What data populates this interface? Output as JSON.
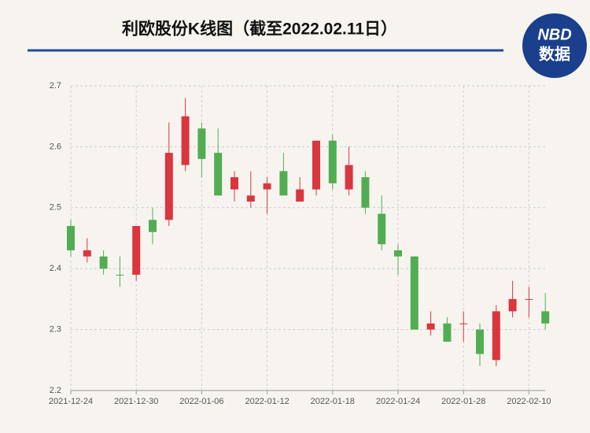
{
  "logo": {
    "top": "NBD",
    "bottom": "数据"
  },
  "chart_data": {
    "type": "candlestick",
    "title": "利欧股份K线图（截至2022.02.11日）",
    "categories": [
      "2021-12-24",
      null,
      null,
      null,
      "2021-12-30",
      null,
      null,
      null,
      "2022-01-06",
      null,
      null,
      null,
      "2022-01-12",
      null,
      null,
      null,
      "2022-01-18",
      null,
      null,
      null,
      "2022-01-24",
      null,
      null,
      null,
      "2022-01-28",
      null,
      null,
      null,
      "2022-02-10",
      null
    ],
    "open": [
      2.47,
      2.42,
      2.42,
      2.39,
      2.39,
      2.48,
      2.48,
      2.57,
      2.63,
      2.59,
      2.53,
      2.51,
      2.53,
      2.56,
      2.51,
      2.53,
      2.61,
      2.53,
      2.55,
      2.49,
      2.43,
      2.42,
      2.3,
      2.31,
      2.31,
      2.3,
      2.25,
      2.33,
      2.35,
      2.33
    ],
    "close": [
      2.43,
      2.43,
      2.4,
      2.39,
      2.47,
      2.46,
      2.59,
      2.65,
      2.58,
      2.52,
      2.55,
      2.52,
      2.54,
      2.52,
      2.53,
      2.61,
      2.54,
      2.57,
      2.5,
      2.44,
      2.42,
      2.3,
      2.31,
      2.28,
      2.31,
      2.26,
      2.33,
      2.35,
      2.35,
      2.31
    ],
    "low": [
      2.42,
      2.41,
      2.39,
      2.37,
      2.38,
      2.44,
      2.47,
      2.56,
      2.55,
      2.52,
      2.51,
      2.5,
      2.49,
      2.52,
      2.51,
      2.52,
      2.53,
      2.52,
      2.49,
      2.43,
      2.39,
      2.3,
      2.29,
      2.28,
      2.28,
      2.24,
      2.24,
      2.32,
      2.32,
      2.3
    ],
    "high": [
      2.48,
      2.45,
      2.43,
      2.42,
      2.47,
      2.5,
      2.64,
      2.68,
      2.64,
      2.63,
      2.56,
      2.56,
      2.55,
      2.59,
      2.55,
      2.61,
      2.62,
      2.6,
      2.56,
      2.52,
      2.44,
      2.42,
      2.33,
      2.32,
      2.33,
      2.31,
      2.34,
      2.38,
      2.37,
      2.36
    ],
    "up_color": "#d9363e",
    "down_color": "#52ad52",
    "ylim": [
      2.2,
      2.7
    ],
    "yticks": [
      2.2,
      2.3,
      2.4,
      2.5,
      2.6,
      2.7
    ],
    "grid": true
  }
}
